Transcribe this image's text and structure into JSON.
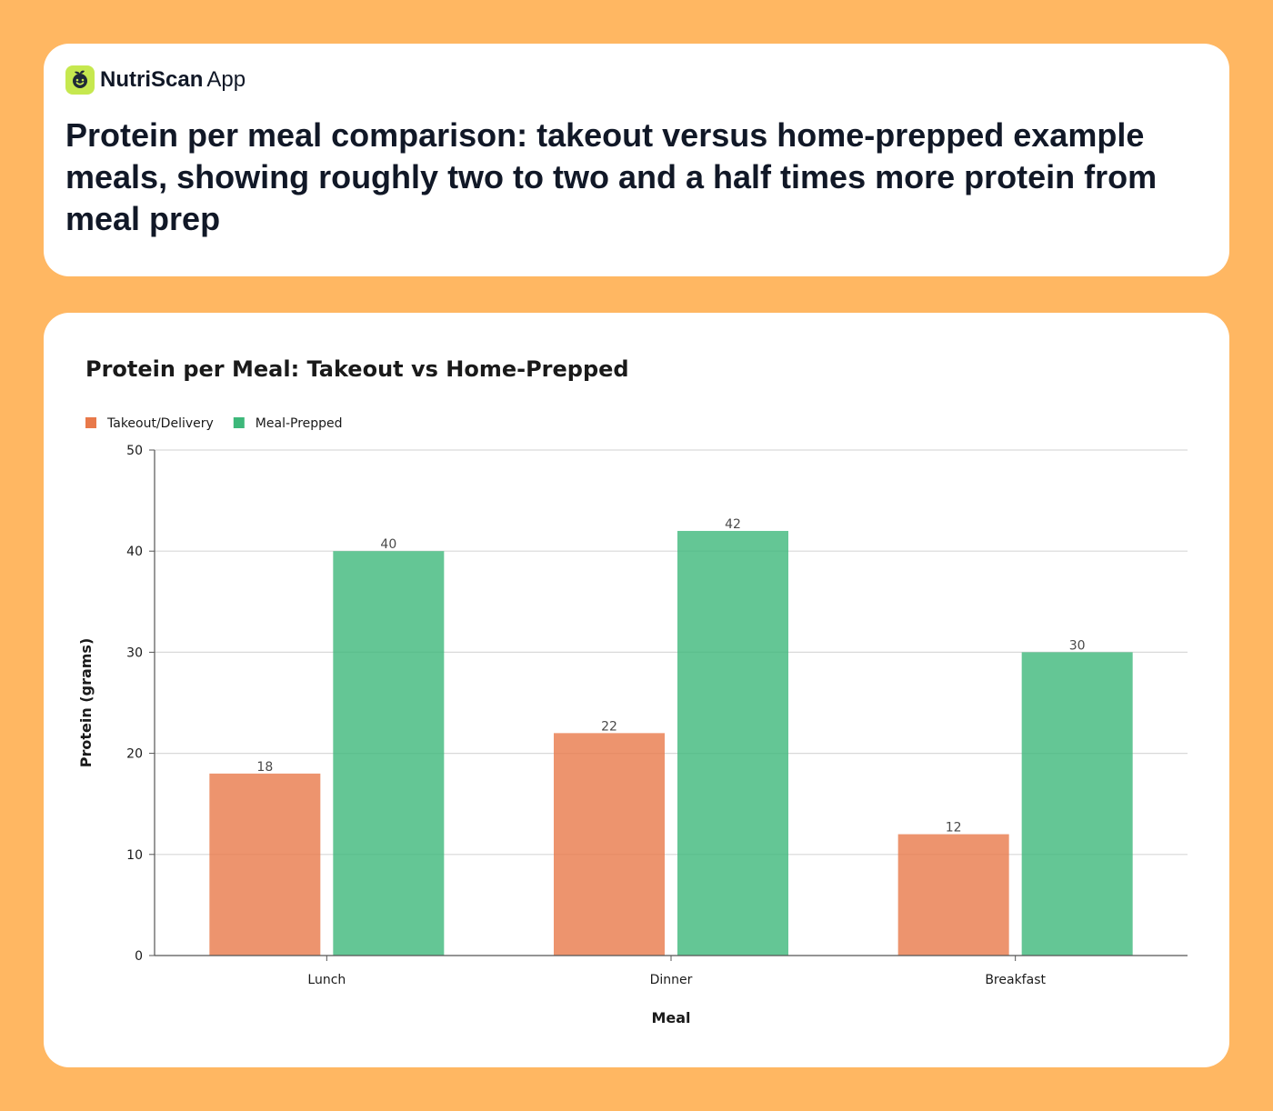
{
  "header": {
    "brand_name": "NutriScan",
    "brand_suffix": "App",
    "headline": "Protein per meal comparison: takeout versus home-prepped example meals, showing roughly two to two and a half times more protein from meal prep"
  },
  "icons": {
    "brand_logo": "leaf-face-icon"
  },
  "chart_data": {
    "type": "bar",
    "title": "Protein per Meal: Takeout vs Home-Prepped",
    "xlabel": "Meal",
    "ylabel": "Protein (grams)",
    "categories": [
      "Lunch",
      "Dinner",
      "Breakfast"
    ],
    "series": [
      {
        "name": "Takeout/Delivery",
        "values": [
          18,
          22,
          12
        ],
        "color": "#E8794A"
      },
      {
        "name": "Meal-Prepped",
        "values": [
          40,
          42,
          30
        ],
        "color": "#3DB87A"
      }
    ],
    "ylim": [
      0,
      50
    ],
    "yticks": [
      0,
      10,
      20,
      30,
      40,
      50
    ],
    "grid": true,
    "legend": "top-left",
    "data_labels": true
  }
}
